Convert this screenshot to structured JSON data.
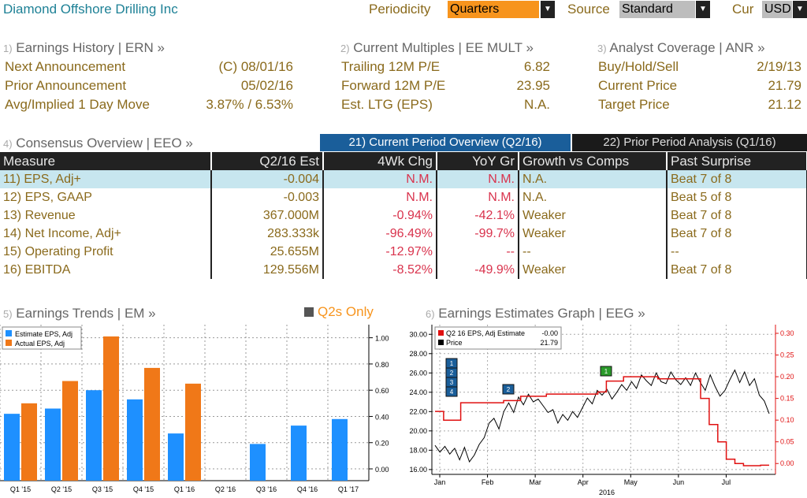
{
  "header": {
    "title": "Diamond Offshore Drilling Inc",
    "periodicity_label": "Periodicity",
    "periodicity_value": "Quarters",
    "source_label": "Source",
    "source_value": "Standard",
    "cur_label": "Cur",
    "cur_value": "USD"
  },
  "earnings_history": {
    "num": "1)",
    "title": "Earnings History | ERN »",
    "rows": [
      {
        "label": "Next Announcement",
        "value": "(C)  08/01/16"
      },
      {
        "label": "Prior Announcement",
        "value": "05/02/16"
      },
      {
        "label": "Avg/Implied 1 Day Move",
        "value": "3.87% / 6.53%"
      }
    ]
  },
  "current_multiples": {
    "num": "2)",
    "title": "Current Multiples | EE MULT »",
    "rows": [
      {
        "label": "Trailing 12M P/E",
        "value": "6.82"
      },
      {
        "label": "Forward 12M P/E",
        "value": "23.95"
      },
      {
        "label": "Est. LTG (EPS)",
        "value": "N.A."
      }
    ]
  },
  "analyst_coverage": {
    "num": "3)",
    "title": "Analyst Coverage | ANR »",
    "rows": [
      {
        "label": "Buy/Hold/Sell",
        "value": "2/19/13"
      },
      {
        "label": "Current Price",
        "value": "21.79"
      },
      {
        "label": "Target Price",
        "value": "21.12"
      }
    ]
  },
  "consensus": {
    "num": "4)",
    "title": "Consensus Overview | EEO »",
    "tab_current": "21) Current Period Overview (Q2/16)",
    "tab_prior": "22) Prior Period Analysis (Q1/16)",
    "columns": [
      "Measure",
      "Q2/16 Est",
      "4Wk Chg",
      "YoY Gr",
      "Growth vs Comps",
      "Past Surprise"
    ],
    "rows": [
      {
        "measure": "11) EPS, Adj+",
        "est": "-0.004",
        "chg": "N.M.",
        "yoy": "N.M.",
        "comps": "N.A.",
        "surprise": "Beat 7 of 8"
      },
      {
        "measure": "12) EPS, GAAP",
        "est": "-0.003",
        "chg": "N.M.",
        "yoy": "N.M.",
        "comps": "N.A.",
        "surprise": "Beat 5 of 8"
      },
      {
        "measure": "13) Revenue",
        "est": "367.000M",
        "chg": "-0.94%",
        "yoy": "-42.1%",
        "comps": "Weaker",
        "surprise": "Beat 7 of 8"
      },
      {
        "measure": "14) Net Income, Adj+",
        "est": "283.333k",
        "chg": "-96.49%",
        "yoy": "-99.7%",
        "comps": "Weaker",
        "surprise": "Beat 7 of 8"
      },
      {
        "measure": "15) Operating Profit",
        "est": "25.655M",
        "chg": "-12.97%",
        "yoy": "--",
        "comps": "--",
        "surprise": "--"
      },
      {
        "measure": "16) EBITDA",
        "est": "129.556M",
        "chg": "-8.52%",
        "yoy": "-49.9%",
        "comps": "Weaker",
        "surprise": "Beat 7 of 8"
      }
    ]
  },
  "earnings_trends": {
    "num": "5)",
    "title": "Earnings Trends | EM »",
    "toggle_label": "Q2s Only"
  },
  "earnings_graph": {
    "num": "6)",
    "title": "Earnings Estimates Graph | EEG »",
    "legend_est_label": "Q2 16 EPS, Adj Estimate",
    "legend_est_value": "-0.00",
    "legend_price_label": "Price",
    "legend_price_value": "21.79"
  },
  "chart_data": [
    {
      "type": "bar",
      "categories": [
        "Q1 '15",
        "Q2 '15",
        "Q3 '15",
        "Q4 '15",
        "Q1 '16",
        "Q2 '16",
        "Q3 '16",
        "Q4 '16",
        "Q1 '17"
      ],
      "series": [
        {
          "name": "Estimate EPS, Adj",
          "color": "#1e90ff",
          "values": [
            0.42,
            0.46,
            0.6,
            0.53,
            0.27,
            null,
            0.19,
            0.33,
            0.38
          ]
        },
        {
          "name": "Actual EPS, Adj",
          "color": "#f07818",
          "values": [
            0.5,
            0.67,
            1.01,
            0.77,
            0.65,
            null,
            null,
            null,
            null
          ]
        }
      ],
      "yticks": [
        "0.00",
        "0.20",
        "0.40",
        "0.60",
        "0.80",
        "1.00"
      ],
      "ylim": [
        -0.09,
        1.1
      ]
    },
    {
      "type": "line",
      "x_ticks": [
        "Jan",
        "Feb",
        "Mar",
        "Apr",
        "May",
        "Jun",
        "Jul"
      ],
      "x_year": "2016",
      "left_yticks": [
        "16.00",
        "18.00",
        "20.00",
        "22.00",
        "24.00",
        "26.00",
        "28.00",
        "30.00"
      ],
      "left_ylim": [
        15.5,
        31
      ],
      "right_yticks": [
        "0.00",
        "0.05",
        "0.10",
        "0.15",
        "0.20",
        "0.25",
        "0.30"
      ],
      "right_ylim": [
        -0.025,
        0.32
      ],
      "series": [
        {
          "name": "Price",
          "color": "#000000",
          "axis": "left",
          "values": [
            18.5,
            17.8,
            18.4,
            17.6,
            18.2,
            17.0,
            18.3,
            16.8,
            17.5,
            18.6,
            19.3,
            20.8,
            21.3,
            20.2,
            22.0,
            22.9,
            21.9,
            23.5,
            22.7,
            23.8,
            23.0,
            23.3,
            22.6,
            21.9,
            22.2,
            20.8,
            21.7,
            21.1,
            22.0,
            21.4,
            22.4,
            23.4,
            22.8,
            24.2,
            23.7,
            24.3,
            23.3,
            24.0,
            24.8,
            24.2,
            25.1,
            24.4,
            25.8,
            25.2,
            24.7,
            26.0,
            25.1,
            24.9,
            26.1,
            25.3,
            24.8,
            25.5,
            24.7,
            26.0,
            25.0,
            24.2,
            25.8,
            24.6,
            23.6,
            24.2,
            25.3,
            26.3,
            25.0,
            26.1,
            24.7,
            25.4,
            23.7,
            23.1,
            21.79
          ]
        },
        {
          "name": "Q2 16 EPS, Adj Estimate",
          "color": "#e01010",
          "axis": "right",
          "values": [
            0.12,
            0.1,
            0.1,
            0.14,
            0.14,
            0.14,
            0.14,
            0.14,
            0.145,
            0.145,
            0.155,
            0.155,
            0.155,
            0.16,
            0.16,
            0.16,
            0.16,
            0.16,
            0.16,
            0.165,
            0.19,
            0.19,
            0.2,
            0.2,
            0.2,
            0.2,
            0.195,
            0.195,
            0.195,
            0.195,
            0.195,
            0.15,
            0.09,
            0.05,
            0.01,
            0.0,
            -0.005,
            -0.005,
            -0.004
          ]
        }
      ],
      "markers": [
        "1",
        "2",
        "3",
        "4",
        "2",
        "1"
      ]
    }
  ]
}
